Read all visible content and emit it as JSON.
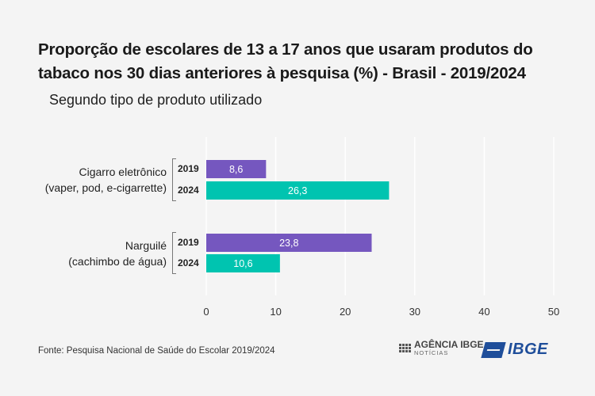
{
  "title": "Proporção de escolares de 13 a 17 anos que usaram produtos do tabaco nos 30 dias anteriores à pesquisa (%) - Brasil - 2019/2024",
  "subtitle": "Segundo tipo de produto utilizado",
  "source": "Fonte: Pesquisa Nacional de Saúde do Escolar 2019/2024",
  "logos": {
    "agencia_line1": "AGÊNCIA IBGE",
    "agencia_line2": "NOTÍCIAS",
    "ibge": "IBGE"
  },
  "colors": {
    "2019": "#7557bf",
    "2024": "#00c4b0",
    "grid": "#ffffff"
  },
  "chart_data": {
    "type": "bar",
    "orientation": "horizontal",
    "categories": [
      [
        "Cigarro eletrônico",
        "(vaper, pod, e-cigarrette)"
      ],
      [
        "Narguilé",
        "(cachimbo de água)"
      ]
    ],
    "series": [
      {
        "name": "2019",
        "values": [
          8.6,
          23.8
        ],
        "labels": [
          "8,6",
          "23,8"
        ]
      },
      {
        "name": "2024",
        "values": [
          26.3,
          10.6
        ],
        "labels": [
          "26,3",
          "10,6"
        ]
      }
    ],
    "xlim": [
      0,
      50
    ],
    "xticks": [
      0,
      10,
      20,
      30,
      40,
      50
    ],
    "grid": true
  }
}
